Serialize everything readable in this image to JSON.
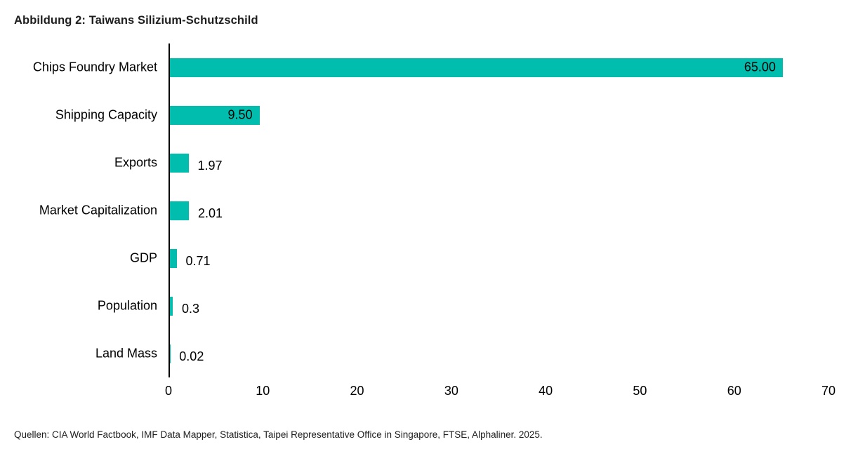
{
  "title": "Abbildung 2: Taiwans Silizium-Schutzschild",
  "source": "Quellen: CIA World Factbook, IMF Data Mapper, Statistica, Taipei Representative Office in Singapore, FTSE, Alphaliner. 2025.",
  "colors": {
    "bar": "#00BDAE",
    "axis": "#000000",
    "text": "#000000",
    "title_text": "#1d1d1d"
  },
  "chart_data": {
    "type": "bar",
    "orientation": "horizontal",
    "title": "Abbildung 2: Taiwans Silizium-Schutzschild",
    "categories": [
      "Chips Foundry Market",
      "Shipping Capacity",
      "Exports",
      "Market Capitalization",
      "GDP",
      "Population",
      "Land Mass"
    ],
    "values": [
      65.0,
      9.5,
      1.97,
      2.01,
      0.71,
      0.3,
      0.02
    ],
    "value_labels": [
      "65.00",
      "9.50",
      "1.97",
      "2.01",
      "0.71",
      "0.3",
      "0.02"
    ],
    "label_inside": [
      true,
      true,
      false,
      false,
      false,
      false,
      false
    ],
    "xlabel": "",
    "ylabel": "",
    "xlim": [
      0,
      70
    ],
    "xticks": [
      0,
      10,
      20,
      30,
      40,
      50,
      60,
      70
    ],
    "grid": false,
    "legend": null
  }
}
